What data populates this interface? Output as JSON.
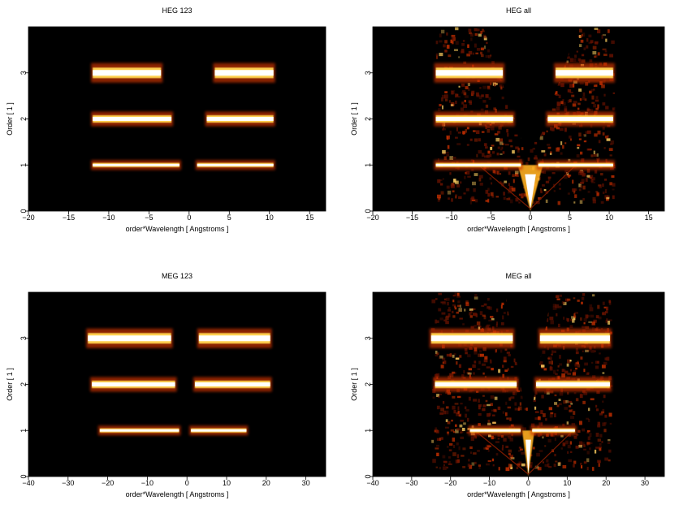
{
  "chart_data": [
    {
      "type": "heatmap",
      "title": "HEG 123",
      "xlabel": "order*Wavelength [ Angstroms ]",
      "ylabel": "Order [ 1 ]",
      "xlim": [
        -20,
        17
      ],
      "ylim": [
        0,
        4
      ],
      "xticks": [
        -20,
        -15,
        -10,
        -5,
        0,
        5,
        10,
        15
      ],
      "yticks": [
        0,
        1,
        2,
        3
      ],
      "colormap": "black-red-yellow-white",
      "background": "#000000",
      "bands": [
        {
          "order": 1,
          "segments": [
            [
              -12,
              -1.2
            ],
            [
              1,
              10.5
            ]
          ]
        },
        {
          "order": 2,
          "segments": [
            [
              -12,
              -2.2
            ],
            [
              2.2,
              10.5
            ]
          ]
        },
        {
          "order": 3,
          "segments": [
            [
              -12,
              -3.5
            ],
            [
              3.2,
              10.5
            ]
          ]
        }
      ],
      "cone": false
    },
    {
      "type": "heatmap",
      "title": "HEG all",
      "xlabel": "order*Wavelength [ Angstroms ]",
      "ylabel": "Order [ 1 ]",
      "xlim": [
        -20,
        17
      ],
      "ylim": [
        0,
        4
      ],
      "xticks": [
        -20,
        -15,
        -10,
        -5,
        0,
        5,
        10,
        15
      ],
      "yticks": [
        0,
        1,
        2,
        3
      ],
      "colormap": "black-red-yellow-white",
      "background": "#000000",
      "bands": [
        {
          "order": 1,
          "segments": [
            [
              -12,
              -1.2
            ],
            [
              1,
              10.5
            ]
          ]
        },
        {
          "order": 2,
          "segments": [
            [
              -12,
              -2.2
            ],
            [
              2.2,
              10.5
            ]
          ]
        },
        {
          "order": 3,
          "segments": [
            [
              -12,
              -3.5
            ],
            [
              3.2,
              10.5
            ]
          ]
        }
      ],
      "cone": true
    },
    {
      "type": "heatmap",
      "title": "MEG 123",
      "xlabel": "order*Wavelength [ Angstroms ]",
      "ylabel": "Order [ 1 ]",
      "xlim": [
        -40,
        35
      ],
      "ylim": [
        0,
        4
      ],
      "xticks": [
        -40,
        -30,
        -20,
        -10,
        0,
        10,
        20,
        30
      ],
      "yticks": [
        0,
        1,
        2,
        3
      ],
      "colormap": "black-red-yellow-white",
      "background": "#000000",
      "bands": [
        {
          "order": 1,
          "segments": [
            [
              -22,
              -2
            ],
            [
              1,
              15
            ]
          ]
        },
        {
          "order": 2,
          "segments": [
            [
              -24,
              -3
            ],
            [
              2,
              21
            ]
          ]
        },
        {
          "order": 3,
          "segments": [
            [
              -25,
              -4
            ],
            [
              3,
              21
            ]
          ]
        }
      ],
      "cone": false
    },
    {
      "type": "heatmap",
      "title": "MEG all",
      "xlabel": "order*Wavelength [ Angstroms ]",
      "ylabel": "Order [ 1 ]",
      "xlim": [
        -40,
        35
      ],
      "ylim": [
        0,
        4
      ],
      "xticks": [
        -40,
        -30,
        -20,
        -10,
        0,
        10,
        20,
        30
      ],
      "yticks": [
        0,
        1,
        2,
        3
      ],
      "colormap": "black-red-yellow-white",
      "background": "#000000",
      "bands": [
        {
          "order": 1,
          "segments": [
            [
              -15,
              -2
            ],
            [
              1,
              12
            ]
          ]
        },
        {
          "order": 2,
          "segments": [
            [
              -24,
              -3
            ],
            [
              2,
              21
            ]
          ]
        },
        {
          "order": 3,
          "segments": [
            [
              -25,
              -4
            ],
            [
              3,
              21
            ]
          ]
        }
      ],
      "cone": true
    }
  ]
}
